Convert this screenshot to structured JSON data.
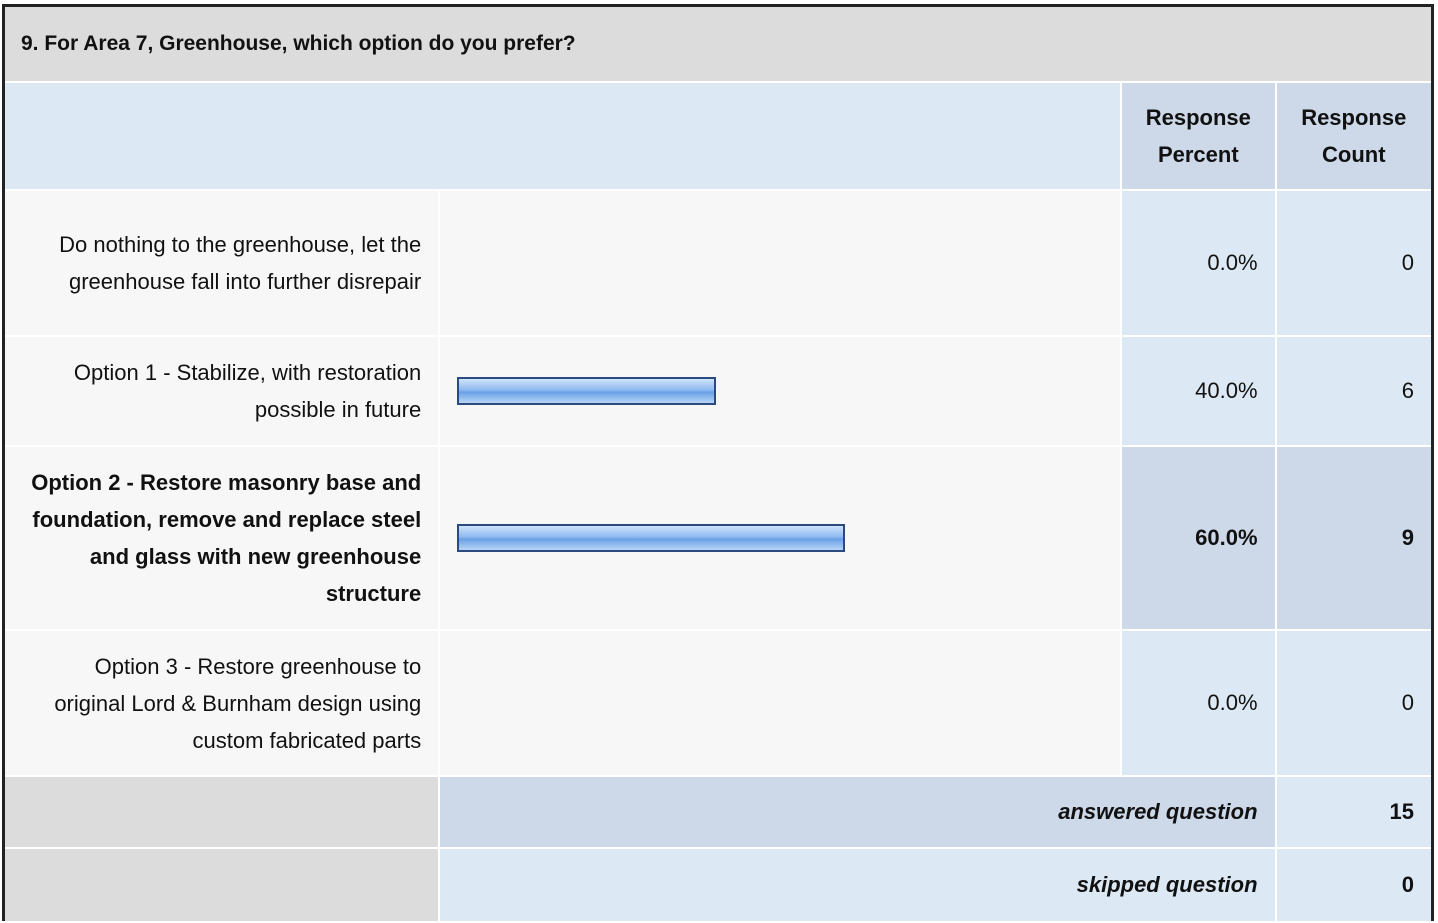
{
  "title": "9. For Area 7, Greenhouse, which option do you prefer?",
  "headers": {
    "percent": "Response Percent",
    "count": "Response Count"
  },
  "rows": [
    {
      "label": "Do nothing to the greenhouse, let the greenhouse fall into further disrepair",
      "percent": {
        "value": 0,
        "label": "0.0%"
      },
      "count": 0
    },
    {
      "label": "Option 1 - Stabilize, with restoration possible in future",
      "percent": {
        "value": 40,
        "label": "40.0%"
      },
      "count": 6
    },
    {
      "label": "Option 2 - Restore masonry base and foundation, remove and replace steel and glass with new greenhouse structure",
      "percent": {
        "value": 60,
        "label": "60.0%"
      },
      "count": 9
    },
    {
      "label": "Option 3 - Restore greenhouse to original Lord & Burnham design using custom fabricated parts",
      "percent": {
        "value": 0,
        "label": "0.0%"
      },
      "count": 0
    }
  ],
  "answered": {
    "label": "answered question",
    "count": 15
  },
  "skipped": {
    "label": "skipped question",
    "count": 0
  }
}
